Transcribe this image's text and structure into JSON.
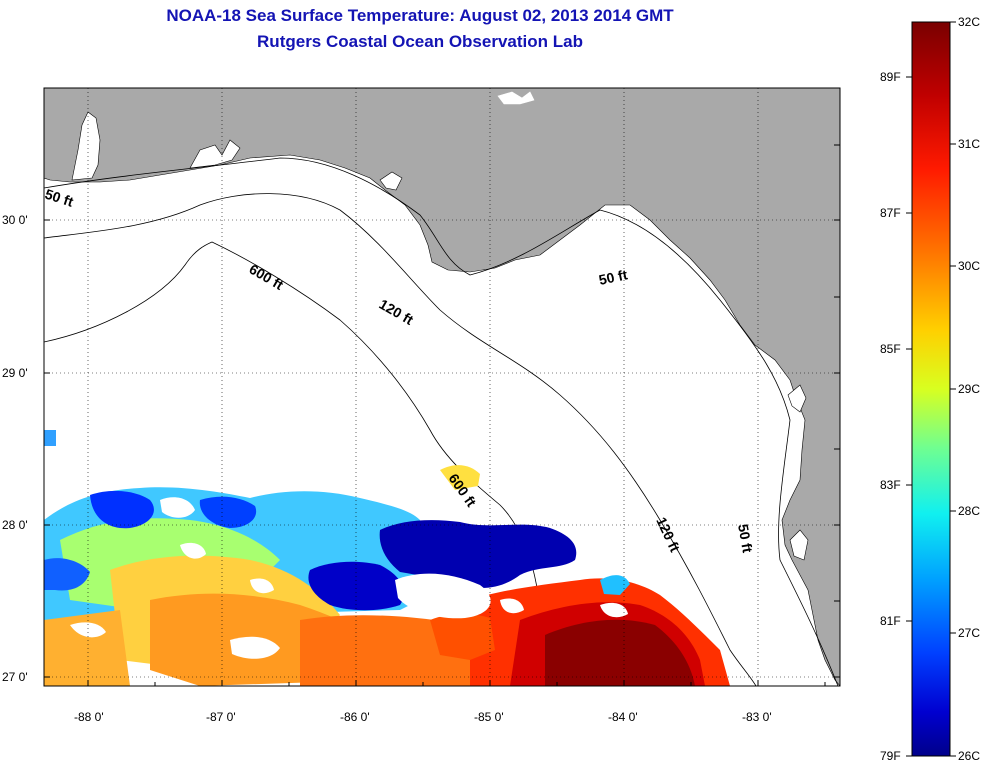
{
  "title": {
    "line1": "NOAA-18 Sea Surface Temperature:  August 02, 2013 2014 GMT",
    "line2": "Rutgers Coastal Ocean Observation Lab"
  },
  "axes": {
    "lon_labels": [
      "-88 0'",
      "-87 0'",
      "-86 0'",
      "-85 0'",
      "-84 0'",
      "-83 0'"
    ],
    "lat_labels": [
      "30 0'",
      "29 0'",
      "28 0'",
      "27 0'"
    ]
  },
  "contours": {
    "c50_west": "50 ft",
    "c600_north": "600 ft",
    "c120_north": "120 ft",
    "c50_east": "50 ft",
    "c600_south": "600 ft",
    "c120_south": "120 ft",
    "c50_south": "50 ft"
  },
  "colorbar": {
    "celsius": [
      "32C",
      "31C",
      "30C",
      "29C",
      "28C",
      "27C",
      "26C"
    ],
    "fahrenheit": [
      "89F",
      "87F",
      "85F",
      "83F",
      "81F",
      "79F"
    ],
    "colors": [
      "#800000",
      "#c80000",
      "#ff2000",
      "#ff7000",
      "#ffc000",
      "#e8ff10",
      "#80ff80",
      "#10f0e8",
      "#00a0ff",
      "#0040ff",
      "#0000c0",
      "#00008c"
    ]
  },
  "colors": {
    "land": "#a9a9a9",
    "title": "#1414b4"
  }
}
